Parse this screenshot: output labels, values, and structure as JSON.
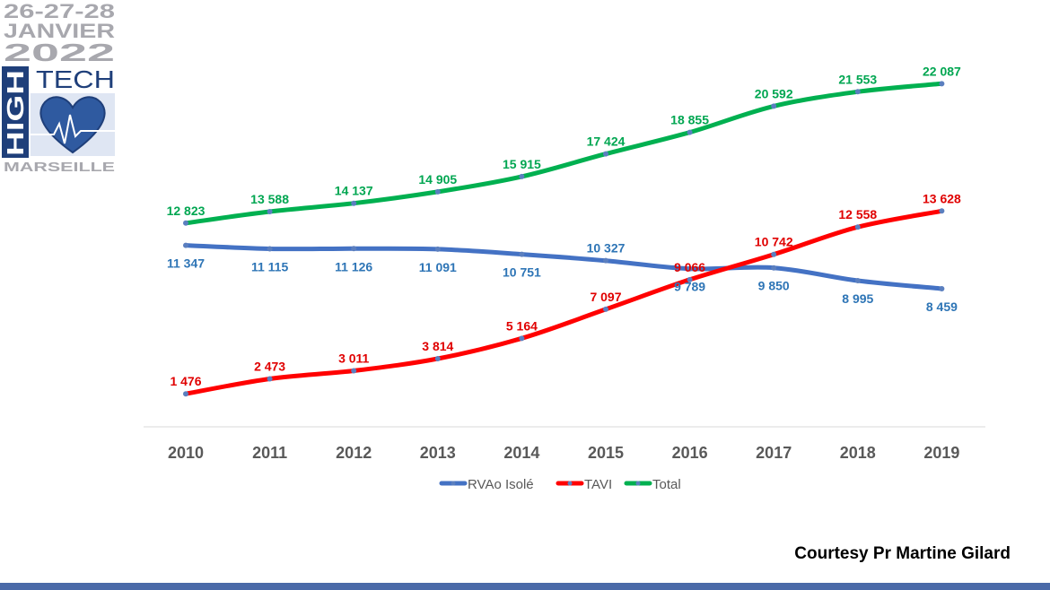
{
  "logo": {
    "dates": "26-27-28",
    "month": "JANVIER",
    "year": "2022",
    "word_high": "HIGH",
    "word_tech": "TECH",
    "city": "MARSEILLE"
  },
  "chart_data": {
    "type": "line",
    "title": "",
    "xlabel": "",
    "ylabel": "",
    "categories": [
      "2010",
      "2011",
      "2012",
      "2013",
      "2014",
      "2015",
      "2016",
      "2017",
      "2018",
      "2019"
    ],
    "ylim": [
      0,
      23000
    ],
    "grid": false,
    "legend_position": "bottom",
    "series": [
      {
        "name": "RVAo Isolé",
        "color": "#4472c4",
        "label_color": "#2e75b6",
        "values": [
          11347,
          11115,
          11126,
          11091,
          10751,
          10327,
          9789,
          9850,
          8995,
          8459
        ],
        "labels": [
          "11 347",
          "11 115",
          "11 126",
          "11 091",
          "10 751",
          "10 327",
          "9 789",
          "9 850",
          "8 995",
          "8 459"
        ]
      },
      {
        "name": "TAVI",
        "color": "#ff0000",
        "label_color": "#e00000",
        "values": [
          1476,
          2473,
          3011,
          3814,
          5164,
          7097,
          9066,
          10742,
          12558,
          13628
        ],
        "labels": [
          "1 476",
          "2 473",
          "3 011",
          "3 814",
          "5 164",
          "7 097",
          "9 066",
          "10 742",
          "12 558",
          "13 628"
        ]
      },
      {
        "name": "Total",
        "color": "#00b050",
        "label_color": "#00a651",
        "values": [
          12823,
          13588,
          14137,
          14905,
          15915,
          17424,
          18855,
          20592,
          21553,
          22087
        ],
        "labels": [
          "12 823",
          "13 588",
          "14 137",
          "14 905",
          "15 915",
          "17 424",
          "18 855",
          "20 592",
          "21 553",
          "22 087"
        ]
      }
    ]
  },
  "footer": {
    "courtesy": "Courtesy Pr Martine Gilard",
    "bar_color": "#4a6aa8"
  }
}
